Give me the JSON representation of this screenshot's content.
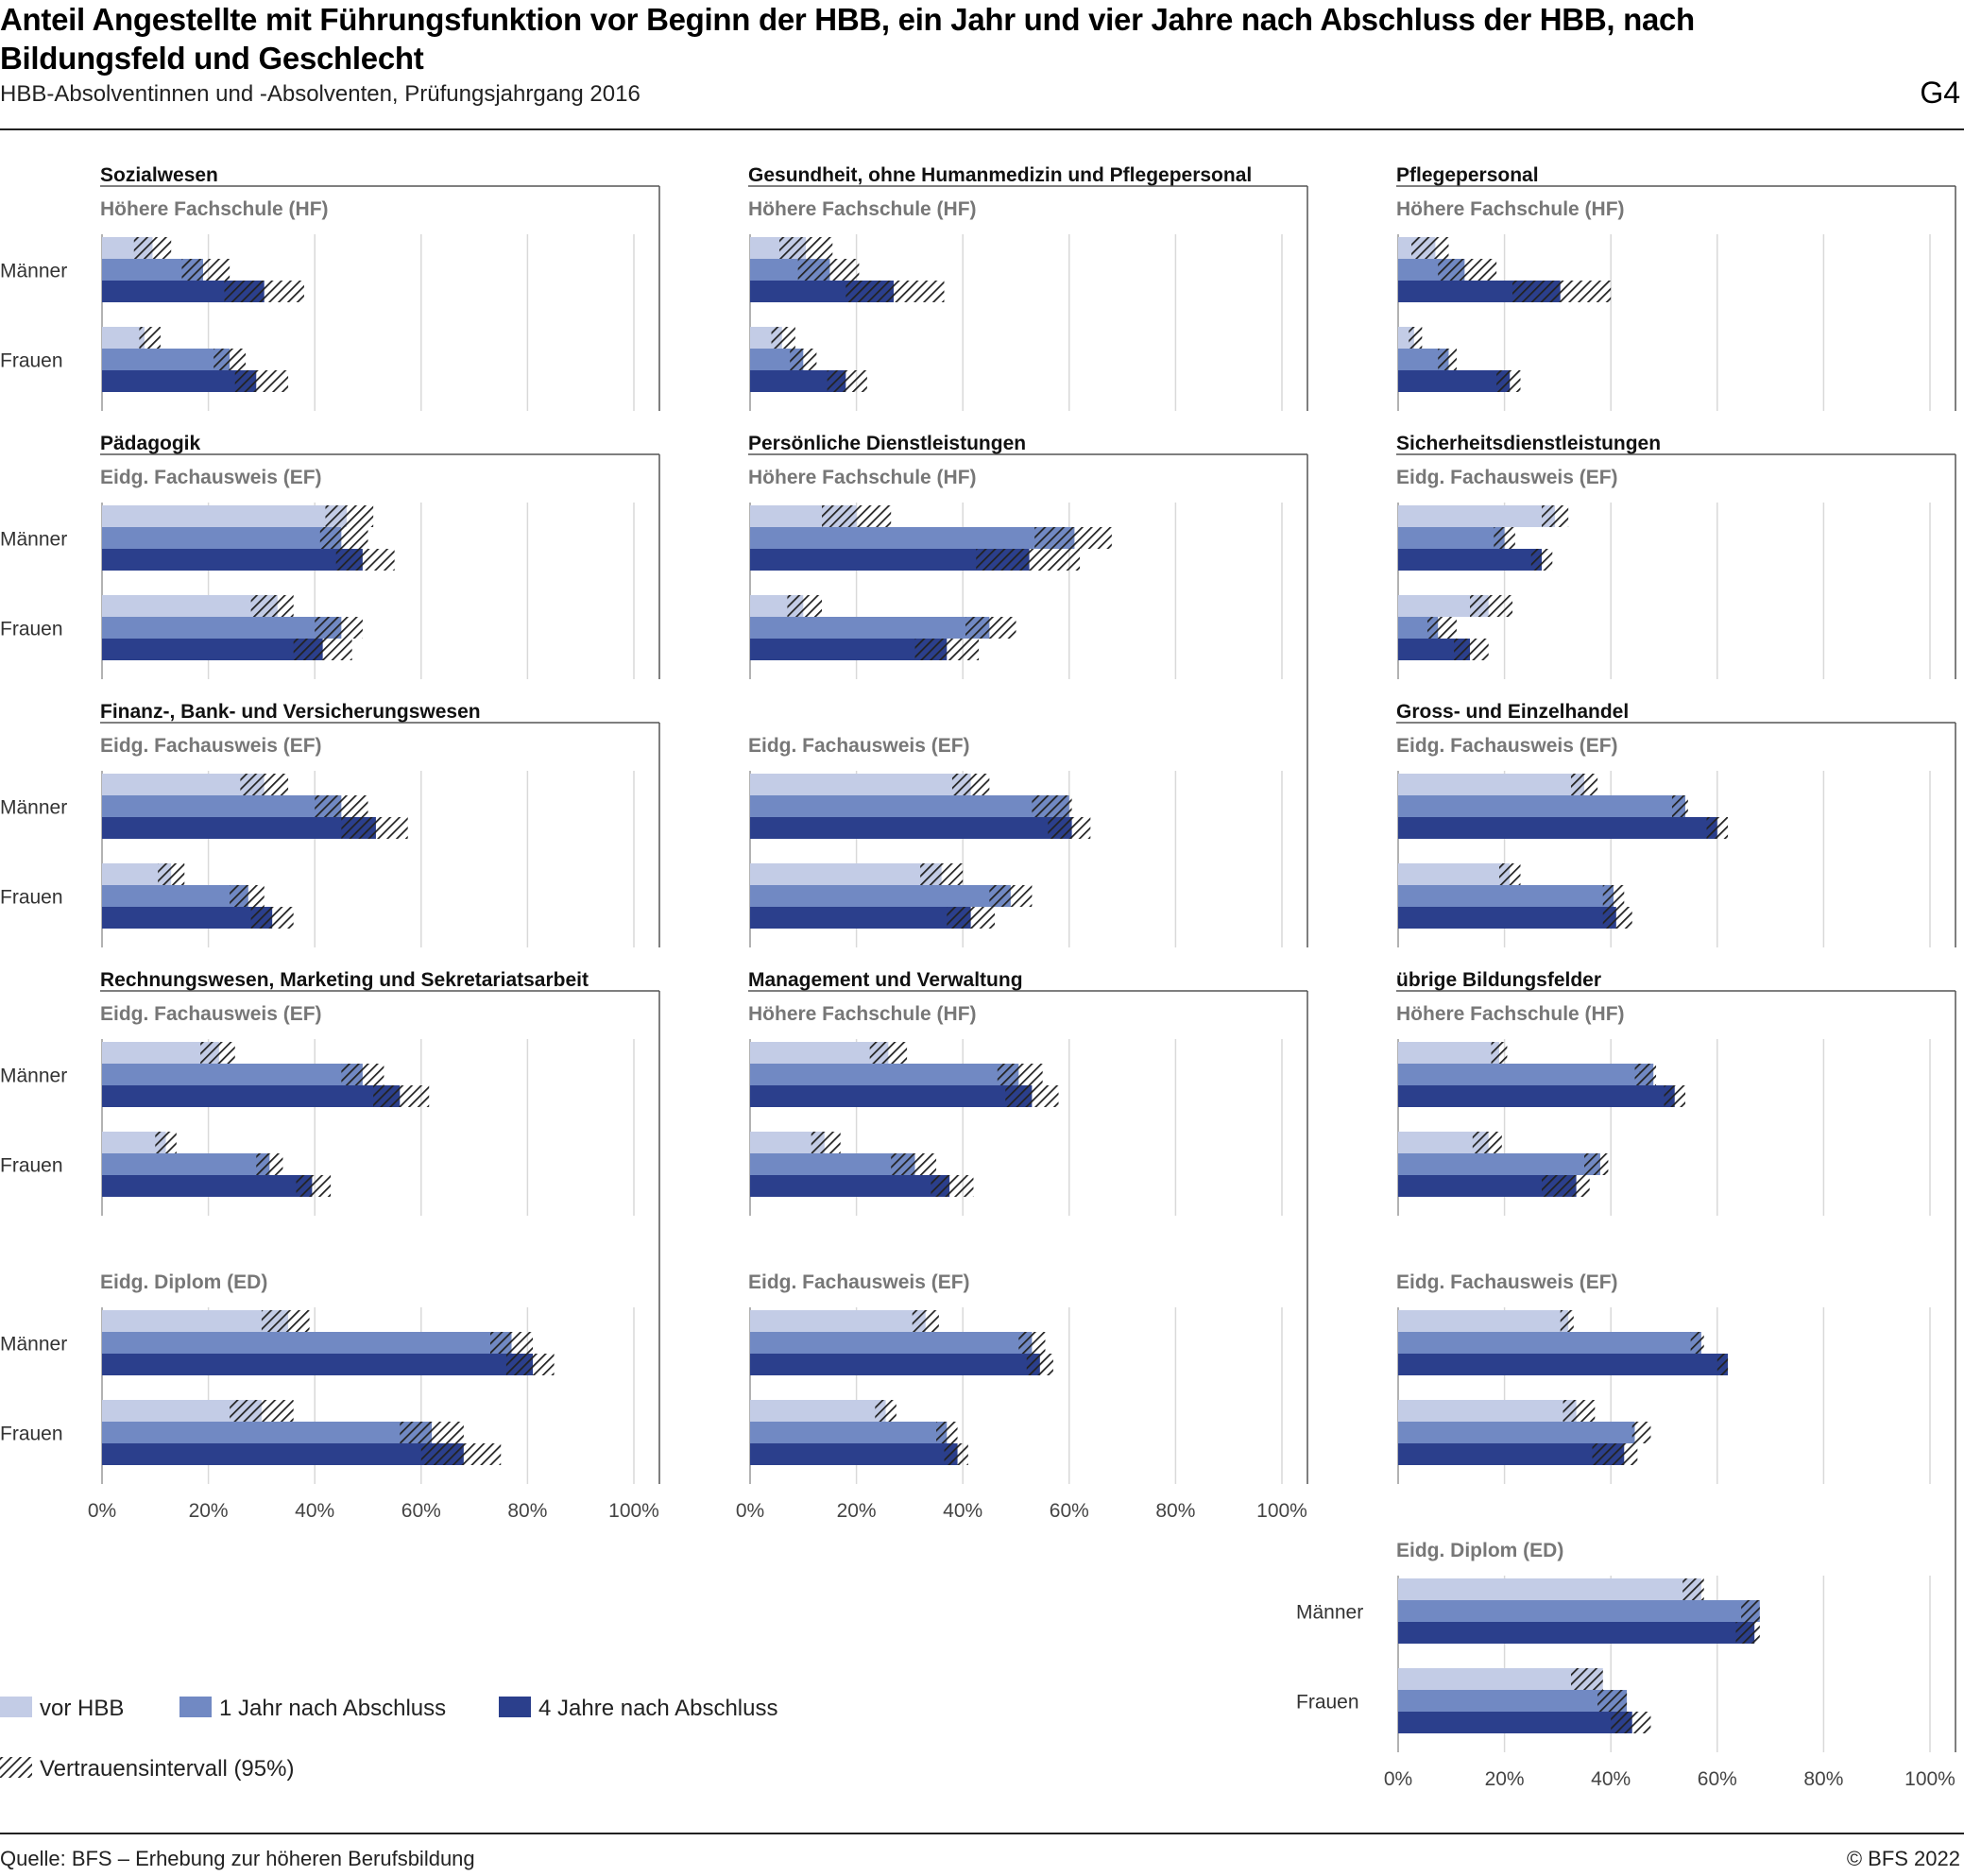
{
  "title": "Anteil Angestellte mit Führungsfunktion vor Beginn der HBB, ein Jahr und vier Jahre nach Abschluss der HBB, nach Bildungsfeld und Geschlecht",
  "subtitle": "HBB-Absolventinnen und -Absolventen, Prüfungsjahrgang 2016",
  "figure_code": "G4",
  "source": "Quelle: BFS – Erhebung zur höheren Berufsbildung",
  "copyright": "© BFS 2022",
  "colors": {
    "vor_hbb": "#c3cce6",
    "ein_jahr": "#7189c3",
    "vier_jahre": "#2b3f8c",
    "ci_hatch": "#222222",
    "grid": "#d9d9d9",
    "frame": "#555555"
  },
  "legend": {
    "items": [
      "vor HBB",
      "1 Jahr nach Abschluss",
      "4 Jahre nach Abschluss"
    ],
    "ci_label": "Vertrauensintervall (95%)"
  },
  "chart_data": {
    "type": "bar",
    "orientation": "horizontal",
    "xlim": [
      0,
      100
    ],
    "x_ticks": [
      "0%",
      "20%",
      "40%",
      "60%",
      "80%",
      "100%"
    ],
    "series": [
      "vor HBB",
      "1 Jahr nach Abschluss",
      "4 Jahre nach Abschluss"
    ],
    "groups": [
      "Männer",
      "Frauen"
    ],
    "value_unit": "%",
    "note": "values are [estimate, ci_low, ci_high] per series",
    "columns": [
      {
        "fields": [
          {
            "name": "Sozialwesen",
            "panels": [
              {
                "subtitle": "Höhere Fachschule (HF)",
                "values": {
                  "Männer": [
                    [
                      9.5,
                      6,
                      13
                    ],
                    [
                      19,
                      15,
                      24
                    ],
                    [
                      30.5,
                      23,
                      38
                    ]
                  ],
                  "Frauen": [
                    [
                      8,
                      7,
                      11
                    ],
                    [
                      24,
                      21,
                      27
                    ],
                    [
                      29,
                      25,
                      35
                    ]
                  ]
                }
              }
            ]
          },
          {
            "name": "Pädagogik",
            "panels": [
              {
                "subtitle": "Eidg. Fachausweis (EF)",
                "values": {
                  "Männer": [
                    [
                      46,
                      42,
                      51
                    ],
                    [
                      45,
                      41,
                      50
                    ],
                    [
                      49,
                      44,
                      55
                    ]
                  ],
                  "Frauen": [
                    [
                      33,
                      28,
                      36
                    ],
                    [
                      45,
                      40,
                      49
                    ],
                    [
                      41.5,
                      36,
                      47
                    ]
                  ]
                }
              }
            ]
          },
          {
            "name": "Finanz-, Bank- und Versicherungswesen",
            "panels": [
              {
                "subtitle": "Eidg. Fachausweis (EF)",
                "values": {
                  "Männer": [
                    [
                      30.5,
                      26,
                      35
                    ],
                    [
                      45,
                      40,
                      50
                    ],
                    [
                      51.5,
                      45,
                      57.5
                    ]
                  ],
                  "Frauen": [
                    [
                      13,
                      10.5,
                      15.5
                    ],
                    [
                      27.5,
                      24,
                      30.5
                    ],
                    [
                      32,
                      28,
                      36
                    ]
                  ]
                }
              }
            ]
          },
          {
            "name": "Rechnungswesen, Marketing und Sekretariatsarbeit",
            "panels": [
              {
                "subtitle": "Eidg. Fachausweis (EF)",
                "values": {
                  "Männer": [
                    [
                      22,
                      18.5,
                      25
                    ],
                    [
                      49,
                      45,
                      53
                    ],
                    [
                      56,
                      51,
                      61.5
                    ]
                  ],
                  "Frauen": [
                    [
                      12,
                      10,
                      14
                    ],
                    [
                      31.5,
                      29,
                      34
                    ],
                    [
                      39.5,
                      36.5,
                      43
                    ]
                  ]
                }
              },
              {
                "subtitle": "Eidg. Diplom (ED)",
                "values": {
                  "Männer": [
                    [
                      35,
                      30,
                      39
                    ],
                    [
                      77,
                      73,
                      81
                    ],
                    [
                      81,
                      76,
                      85
                    ]
                  ],
                  "Frauen": [
                    [
                      30,
                      24,
                      36
                    ],
                    [
                      62,
                      56,
                      68
                    ],
                    [
                      68,
                      60,
                      75
                    ]
                  ]
                }
              }
            ]
          }
        ]
      },
      {
        "fields": [
          {
            "name": "Gesundheit, ohne Humanmedizin und Pflegepersonal",
            "panels": [
              {
                "subtitle": "Höhere Fachschule (HF)",
                "values": {
                  "Männer": [
                    [
                      10.5,
                      5.5,
                      15.5
                    ],
                    [
                      15,
                      9,
                      20.5
                    ],
                    [
                      27,
                      18,
                      36.5
                    ]
                  ],
                  "Frauen": [
                    [
                      6,
                      4,
                      8.5
                    ],
                    [
                      10,
                      7.5,
                      12.5
                    ],
                    [
                      18,
                      14.5,
                      22
                    ]
                  ]
                }
              }
            ]
          },
          {
            "name": "Persönliche Dienstleistungen",
            "panels": [
              {
                "subtitle": "Höhere Fachschule (HF)",
                "values": {
                  "Männer": [
                    [
                      20,
                      13.5,
                      26.5
                    ],
                    [
                      61,
                      53.5,
                      68
                    ],
                    [
                      52.5,
                      42.5,
                      62
                    ]
                  ],
                  "Frauen": [
                    [
                      10,
                      7,
                      13.5
                    ],
                    [
                      45,
                      40.5,
                      50
                    ],
                    [
                      37,
                      31,
                      43
                    ]
                  ]
                }
              },
              {
                "subtitle": "Eidg. Fachausweis (EF)",
                "values": {
                  "Männer": [
                    [
                      41.5,
                      38,
                      45
                    ],
                    [
                      60,
                      53,
                      60.5
                    ],
                    [
                      60.5,
                      56,
                      64
                    ]
                  ],
                  "Frauen": [
                    [
                      36,
                      32,
                      40
                    ],
                    [
                      49,
                      45,
                      53
                    ],
                    [
                      41.5,
                      37,
                      46
                    ]
                  ]
                }
              }
            ]
          },
          {
            "name": "Management und Verwaltung",
            "panels": [
              {
                "subtitle": "Höhere Fachschule (HF)",
                "values": {
                  "Männer": [
                    [
                      26,
                      22.5,
                      29.5
                    ],
                    [
                      50.5,
                      46.5,
                      55
                    ],
                    [
                      53,
                      48,
                      58
                    ]
                  ],
                  "Frauen": [
                    [
                      14,
                      11.5,
                      17
                    ],
                    [
                      31,
                      26.5,
                      35
                    ],
                    [
                      37.5,
                      34,
                      42
                    ]
                  ]
                }
              },
              {
                "subtitle": "Eidg. Fachausweis (EF)",
                "values": {
                  "Männer": [
                    [
                      33,
                      30.5,
                      35.5
                    ],
                    [
                      53,
                      50.5,
                      55.5
                    ],
                    [
                      54.5,
                      52,
                      57
                    ]
                  ],
                  "Frauen": [
                    [
                      25.5,
                      23.5,
                      27.5
                    ],
                    [
                      37,
                      35,
                      39
                    ],
                    [
                      39,
                      36.5,
                      41
                    ]
                  ]
                }
              }
            ]
          }
        ]
      },
      {
        "fields": [
          {
            "name": "Pflegepersonal",
            "panels": [
              {
                "subtitle": "Höhere Fachschule (HF)",
                "values": {
                  "Männer": [
                    [
                      7,
                      2.5,
                      9.5
                    ],
                    [
                      12.5,
                      7.5,
                      18.5
                    ],
                    [
                      30.5,
                      21.5,
                      40
                    ]
                  ],
                  "Frauen": [
                    [
                      3,
                      2,
                      4.5
                    ],
                    [
                      9.5,
                      7.5,
                      11
                    ],
                    [
                      21,
                      18.5,
                      23
                    ]
                  ]
                }
              }
            ]
          },
          {
            "name": "Sicherheitsdienstleistungen",
            "panels": [
              {
                "subtitle": "Eidg. Fachausweis (EF)",
                "values": {
                  "Männer": [
                    [
                      29.5,
                      27,
                      32
                    ],
                    [
                      20,
                      18,
                      22
                    ],
                    [
                      27,
                      25,
                      29
                    ]
                  ],
                  "Frauen": [
                    [
                      17,
                      13.5,
                      21.5
                    ],
                    [
                      7.5,
                      5.5,
                      11
                    ],
                    [
                      13.5,
                      10.5,
                      17
                    ]
                  ]
                }
              }
            ]
          },
          {
            "name": "Gross- und Einzelhandel",
            "panels": [
              {
                "subtitle": "Eidg. Fachausweis (EF)",
                "values": {
                  "Männer": [
                    [
                      35,
                      32.5,
                      37.5
                    ],
                    [
                      54,
                      51.5,
                      54.5
                    ],
                    [
                      60,
                      58,
                      62
                    ]
                  ],
                  "Frauen": [
                    [
                      21,
                      19,
                      23
                    ],
                    [
                      40.5,
                      38.5,
                      42.5
                    ],
                    [
                      41,
                      38.5,
                      44
                    ]
                  ]
                }
              }
            ]
          },
          {
            "name": "übrige Bildungsfelder",
            "panels": [
              {
                "subtitle": "Höhere Fachschule (HF)",
                "values": {
                  "Männer": [
                    [
                      19,
                      17.5,
                      20.5
                    ],
                    [
                      48,
                      44.5,
                      48.5
                    ],
                    [
                      52,
                      50,
                      54
                    ]
                  ],
                  "Frauen": [
                    [
                      17,
                      14,
                      19.5
                    ],
                    [
                      38,
                      35,
                      39.5
                    ],
                    [
                      33.5,
                      27,
                      36
                    ]
                  ]
                }
              },
              {
                "subtitle": "Eidg. Fachausweis (EF)",
                "values": {
                  "Männer": [
                    [
                      32,
                      30.5,
                      33
                    ],
                    [
                      57,
                      55,
                      57.5
                    ],
                    [
                      62,
                      60,
                      62
                    ]
                  ],
                  "Frauen": [
                    [
                      33.5,
                      31,
                      37
                    ],
                    [
                      44.5,
                      44,
                      47.5
                    ],
                    [
                      42.5,
                      36.5,
                      45
                    ]
                  ]
                }
              },
              {
                "subtitle": "Eidg. Diplom (ED)",
                "values": {
                  "Männer": [
                    [
                      57,
                      53.5,
                      57.5
                    ],
                    [
                      68,
                      64.5,
                      68
                    ],
                    [
                      67,
                      63.5,
                      68
                    ]
                  ],
                  "Frauen": [
                    [
                      38.5,
                      32.5,
                      38.5
                    ],
                    [
                      43,
                      37.5,
                      43
                    ],
                    [
                      44,
                      40,
                      47.5
                    ]
                  ]
                }
              }
            ]
          }
        ]
      }
    ]
  }
}
